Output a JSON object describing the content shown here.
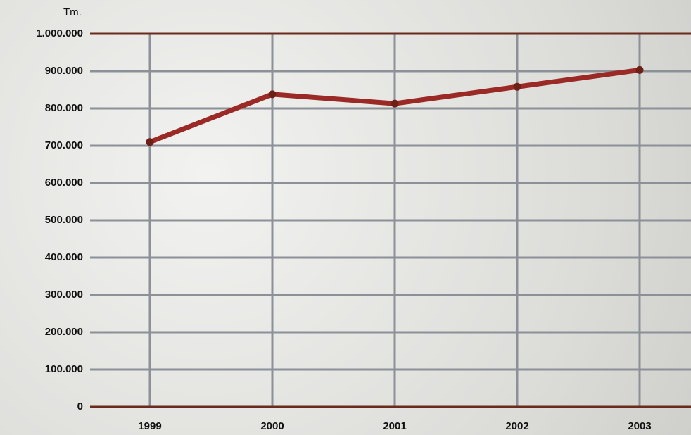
{
  "chart_data": {
    "type": "line",
    "y_label": "Tm.",
    "categories": [
      "1999",
      "2000",
      "2001",
      "2002",
      "2003"
    ],
    "values": [
      710000,
      838000,
      813000,
      858000,
      903000
    ],
    "color": "#9b2a26",
    "marker_color": "#6e1f16",
    "ylim": [
      0,
      1000000
    ],
    "yticks": [
      0,
      {
        "value": 100000,
        "label": "100.000"
      },
      {
        "value": 200000,
        "label": "200.000"
      },
      {
        "value": 300000,
        "label": "300.000"
      },
      {
        "value": 400000,
        "label": "400.000"
      },
      {
        "value": 500000,
        "label": "500.000"
      },
      {
        "value": 600000,
        "label": "600.000"
      },
      {
        "value": 700000,
        "label": "700.000"
      },
      {
        "value": 800000,
        "label": "800.000"
      },
      {
        "value": 900000,
        "label": "900.000"
      },
      {
        "value": 1000000,
        "label": "1.000.000"
      }
    ],
    "grid": true
  }
}
